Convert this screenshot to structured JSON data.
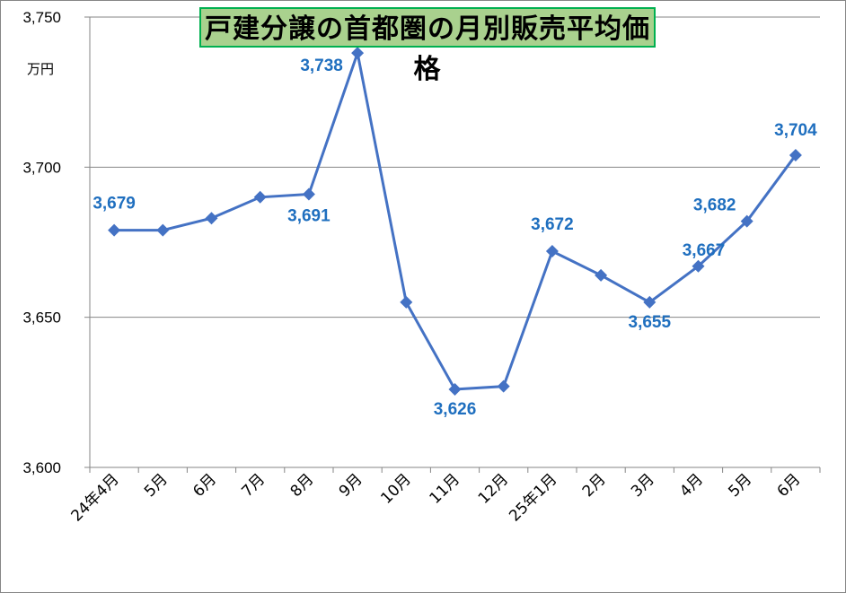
{
  "chart_data": {
    "type": "line",
    "title": "戸建分譲の首都圏の月別販売平均価格",
    "ylabel": "万円",
    "categories": [
      "24年4月",
      "5月",
      "6月",
      "7月",
      "8月",
      "9月",
      "10月",
      "11月",
      "12月",
      "25年1月",
      "2月",
      "3月",
      "4月",
      "5月",
      "6月"
    ],
    "values": [
      3679,
      3679,
      3683,
      3690,
      3691,
      3738,
      3655,
      3626,
      3627,
      3672,
      3664,
      3655,
      3667,
      3682,
      3704
    ],
    "data_labels": [
      {
        "index": 0,
        "text": "3,679"
      },
      {
        "index": 4,
        "text": "3,691"
      },
      {
        "index": 5,
        "text": "3,738"
      },
      {
        "index": 7,
        "text": "3,626"
      },
      {
        "index": 9,
        "text": "3,672"
      },
      {
        "index": 11,
        "text": "3,655"
      },
      {
        "index": 12,
        "text": "3,667"
      },
      {
        "index": 13,
        "text": "3,682"
      },
      {
        "index": 14,
        "text": "3,704"
      }
    ],
    "ylim": [
      3600,
      3750
    ],
    "yticks": [
      3600,
      3650,
      3700,
      3750
    ],
    "ytick_labels": [
      "3,600",
      "3,650",
      "3,700",
      "3,750"
    ],
    "grid": true,
    "marker": "diamond",
    "colors": {
      "line": "#4472c4",
      "label": "#1f6fbf",
      "title_fill": "#a9d18e",
      "title_border": "#00b050",
      "grid": "#868686"
    }
  }
}
